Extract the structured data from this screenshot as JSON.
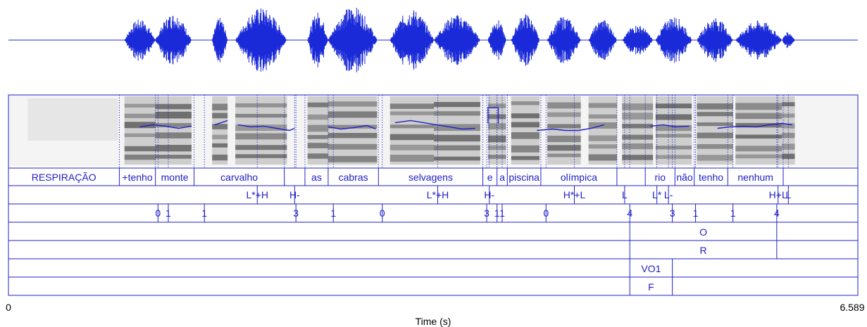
{
  "axis": {
    "x_min_label": "0",
    "x_max_label": "6.589",
    "x_title": "Time (s)"
  },
  "colors": {
    "annotation": "#2020c8",
    "waveform": "#1a2ad8",
    "spectrogram": "#3a3a3a"
  },
  "tiers": {
    "words": [
      {
        "t0": 0.0,
        "t1": 0.86,
        "text": "RESPIRAÇÃO"
      },
      {
        "t0": 0.86,
        "t1": 1.14,
        "text": "+tenho"
      },
      {
        "t0": 1.14,
        "t1": 1.44,
        "text": "monte"
      },
      {
        "t0": 1.44,
        "t1": 2.14,
        "text": "carvalho"
      },
      {
        "t0": 2.14,
        "t1": 2.3,
        "text": ""
      },
      {
        "t0": 2.3,
        "t1": 2.48,
        "text": "as"
      },
      {
        "t0": 2.48,
        "t1": 2.87,
        "text": "cabras"
      },
      {
        "t0": 2.87,
        "t1": 3.68,
        "text": "selvagens"
      },
      {
        "t0": 3.68,
        "t1": 3.79,
        "text": "e"
      },
      {
        "t0": 3.79,
        "t1": 3.87,
        "text": "a"
      },
      {
        "t0": 3.87,
        "t1": 4.13,
        "text": "piscina"
      },
      {
        "t0": 4.13,
        "t1": 4.72,
        "text": "olímpica"
      },
      {
        "t0": 4.72,
        "t1": 4.94,
        "text": ""
      },
      {
        "t0": 4.94,
        "t1": 5.17,
        "text": "rio"
      },
      {
        "t0": 5.17,
        "t1": 5.32,
        "text": "não"
      },
      {
        "t0": 5.32,
        "t1": 5.58,
        "text": "tenho"
      },
      {
        "t0": 5.58,
        "t1": 6.01,
        "text": "nenhum"
      },
      {
        "t0": 6.01,
        "t1": 6.589,
        "text": ""
      }
    ],
    "tones": [
      {
        "t": 1.93,
        "text": "L*+H"
      },
      {
        "t": 2.22,
        "text": "H-"
      },
      {
        "t": 3.33,
        "text": "L*+H"
      },
      {
        "t": 3.73,
        "text": "H-"
      },
      {
        "t": 4.39,
        "text": "H*+L"
      },
      {
        "t": 4.78,
        "text": "L"
      },
      {
        "t": 5.03,
        "text": "L*"
      },
      {
        "t": 5.12,
        "text": "L-"
      },
      {
        "t": 5.97,
        "text": "H+L"
      },
      {
        "t": 6.05,
        "text": "L"
      }
    ],
    "breaks": [
      {
        "t": 1.16,
        "text": "0"
      },
      {
        "t": 1.24,
        "text": "1"
      },
      {
        "t": 1.52,
        "text": "1"
      },
      {
        "t": 2.23,
        "text": "3"
      },
      {
        "t": 2.52,
        "text": "1"
      },
      {
        "t": 2.9,
        "text": "0"
      },
      {
        "t": 3.71,
        "text": "3"
      },
      {
        "t": 3.79,
        "text": "1"
      },
      {
        "t": 3.83,
        "text": "1"
      },
      {
        "t": 4.17,
        "text": "0"
      },
      {
        "t": 4.82,
        "text": "4"
      },
      {
        "t": 5.15,
        "text": "3"
      },
      {
        "t": 5.33,
        "text": "1"
      },
      {
        "t": 5.62,
        "text": "1"
      },
      {
        "t": 5.96,
        "text": "4"
      }
    ],
    "tier4": [
      {
        "t0": 4.82,
        "t1": 5.96,
        "text": "O"
      }
    ],
    "tier5": [
      {
        "t0": 4.82,
        "t1": 5.96,
        "text": "R"
      }
    ],
    "tier6": [
      {
        "t0": 4.82,
        "t1": 5.15,
        "text": "VO1"
      }
    ],
    "tier7": [
      {
        "t0": 4.82,
        "t1": 5.15,
        "text": "F"
      }
    ]
  },
  "pitch_segments": [
    [
      [
        1.02,
        0.55
      ],
      [
        1.12,
        0.58
      ],
      [
        1.22,
        0.56
      ],
      [
        1.32,
        0.53
      ],
      [
        1.42,
        0.56
      ]
    ],
    [
      [
        1.6,
        0.58
      ],
      [
        1.7,
        0.64
      ]
    ],
    [
      [
        1.78,
        0.58
      ],
      [
        1.88,
        0.55
      ],
      [
        1.98,
        0.56
      ],
      [
        2.08,
        0.53
      ],
      [
        2.18,
        0.5
      ],
      [
        2.22,
        0.53
      ]
    ],
    [
      [
        2.48,
        0.55
      ],
      [
        2.58,
        0.52
      ],
      [
        2.68,
        0.54
      ],
      [
        2.78,
        0.57
      ],
      [
        2.85,
        0.52
      ]
    ],
    [
      [
        3.0,
        0.61
      ],
      [
        3.12,
        0.64
      ],
      [
        3.22,
        0.61
      ],
      [
        3.32,
        0.58
      ],
      [
        3.42,
        0.55
      ],
      [
        3.52,
        0.52
      ],
      [
        3.62,
        0.53
      ]
    ],
    [
      [
        3.72,
        0.6
      ],
      [
        3.72,
        0.82
      ],
      [
        3.8,
        0.82
      ],
      [
        3.8,
        0.6
      ]
    ],
    [
      [
        4.1,
        0.5
      ],
      [
        4.22,
        0.52
      ],
      [
        4.32,
        0.5
      ],
      [
        4.42,
        0.5
      ],
      [
        4.52,
        0.53
      ],
      [
        4.62,
        0.58
      ]
    ],
    [
      [
        4.98,
        0.56
      ],
      [
        5.08,
        0.58
      ],
      [
        5.18,
        0.55
      ],
      [
        5.28,
        0.56
      ]
    ],
    [
      [
        5.5,
        0.53
      ],
      [
        5.6,
        0.55
      ],
      [
        5.7,
        0.56
      ],
      [
        5.8,
        0.55
      ],
      [
        5.9,
        0.58
      ],
      [
        6.0,
        0.6
      ],
      [
        6.08,
        0.58
      ]
    ]
  ]
}
